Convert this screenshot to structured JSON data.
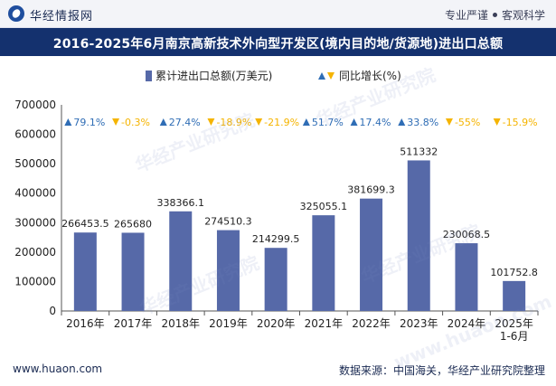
{
  "header": {
    "brand": "华经情报网",
    "tagline_a": "专业严谨",
    "tagline_b": "客观科学"
  },
  "footer": {
    "website": "www.huaon.com",
    "source": "数据来源：中国海关，华经产业研究院整理"
  },
  "watermark_text": "华经产业研究院",
  "watermark_url": "www.huaon.com",
  "colors": {
    "bar": "#5669a8",
    "title_bg": "#14316e",
    "up": "#2f6db5",
    "down": "#f5b400"
  },
  "chart_data": {
    "type": "bar",
    "title": "2016-2025年6月南京高新技术外向型开发区(境内目的地/货源地)进出口总额",
    "categories": [
      "2016年",
      "2017年",
      "2018年",
      "2019年",
      "2020年",
      "2021年",
      "2022年",
      "2023年",
      "2024年",
      "2025年\n1-6月"
    ],
    "series": [
      {
        "name": "累计进出口总额(万美元)",
        "values": [
          266453.5,
          265680,
          338366.1,
          274510.3,
          214299.5,
          325055.1,
          381699.3,
          511332,
          230068.5,
          101752.8
        ],
        "value_labels": [
          "266453.5",
          "265680",
          "338366.1",
          "274510.3",
          "214299.5",
          "325055.1",
          "381699.3",
          "511332",
          "230068.5",
          "101752.8"
        ]
      },
      {
        "name": "同比增长(%)",
        "values": [
          79.1,
          -0.3,
          27.4,
          -18.9,
          -21.9,
          51.7,
          17.4,
          33.8,
          -55,
          -15.9
        ],
        "value_labels": [
          "79.1%",
          "-0.3%",
          "27.4%",
          "-18.9%",
          "-21.9%",
          "51.7%",
          "17.4%",
          "33.8%",
          "-55%",
          "-15.9%"
        ]
      }
    ],
    "ylim": [
      0,
      700000
    ],
    "yticks": [
      0,
      100000,
      200000,
      300000,
      400000,
      500000,
      600000,
      700000
    ],
    "legend_position": "top-center",
    "grid": false
  }
}
